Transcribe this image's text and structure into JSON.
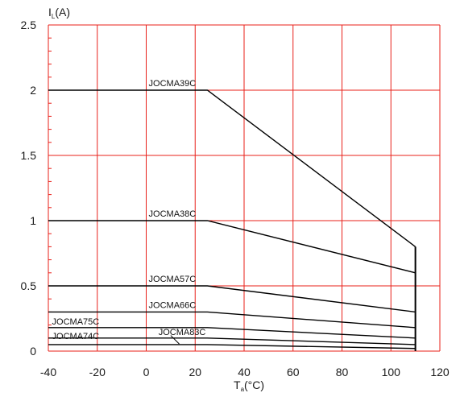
{
  "chart_data": {
    "type": "line",
    "xlabel": {
      "main": "T",
      "sub": "a",
      "rest": "(°C)"
    },
    "ylabel": {
      "main": "I",
      "sub": "L",
      "rest": "(A)"
    },
    "xlim": [
      -40,
      120
    ],
    "ylim": [
      0,
      2.5
    ],
    "x_ticks": [
      "-40",
      "-20",
      "0",
      "20",
      "40",
      "60",
      "80",
      "100",
      "120"
    ],
    "y_ticks": [
      "0",
      "0.5",
      "1",
      "1.5",
      "2",
      "2.5"
    ],
    "grid": true,
    "grid_color": "#e8201a",
    "line_color": "#000000",
    "end_x": 110,
    "series": [
      {
        "name": "JOCMA39C",
        "x": [
          -40,
          25,
          110
        ],
        "y": [
          2.0,
          2.0,
          0.8
        ]
      },
      {
        "name": "JOCMA38C",
        "x": [
          -40,
          25,
          110
        ],
        "y": [
          1.0,
          1.0,
          0.6
        ]
      },
      {
        "name": "JOCMA57C",
        "x": [
          -40,
          25,
          110
        ],
        "y": [
          0.5,
          0.5,
          0.3
        ]
      },
      {
        "name": "JOCMA66C",
        "x": [
          -40,
          25,
          110
        ],
        "y": [
          0.3,
          0.3,
          0.18
        ]
      },
      {
        "name": "JOCMA75C",
        "x": [
          -40,
          25,
          110
        ],
        "y": [
          0.18,
          0.18,
          0.1
        ]
      },
      {
        "name": "JOCMA83C",
        "x": [
          -40,
          25,
          110
        ],
        "y": [
          0.1,
          0.1,
          0.05
        ]
      },
      {
        "name": "JOCMA74C",
        "x": [
          -40,
          25,
          110
        ],
        "y": [
          0.05,
          0.05,
          0.02
        ]
      }
    ]
  }
}
